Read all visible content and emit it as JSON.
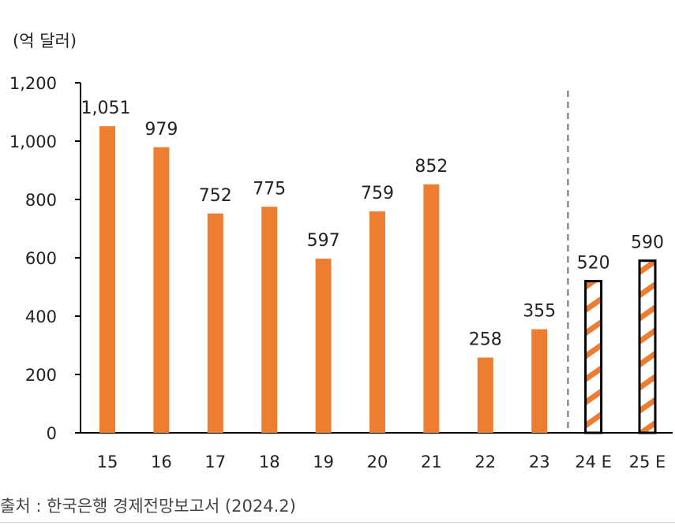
{
  "unit_label": "(억 달러)",
  "source_note": "출처 : 한국은행 경제전망보고서 (2024.2)",
  "chart_data": {
    "type": "bar",
    "categories": [
      "15",
      "16",
      "17",
      "18",
      "19",
      "20",
      "21",
      "22",
      "23",
      "24 E",
      "25 E"
    ],
    "values": [
      1051,
      979,
      752,
      775,
      597,
      759,
      852,
      258,
      355,
      520,
      590
    ],
    "value_labels": [
      "1,051",
      "979",
      "752",
      "775",
      "597",
      "759",
      "852",
      "258",
      "355",
      "520",
      "590"
    ],
    "estimate_flags": [
      false,
      false,
      false,
      false,
      false,
      false,
      false,
      false,
      false,
      true,
      true
    ],
    "ylim": [
      0,
      1200
    ],
    "yticks": [
      0,
      200,
      400,
      600,
      800,
      1000,
      1200
    ],
    "ytick_labels": [
      "0",
      "200",
      "400",
      "600",
      "800",
      "1,000",
      "1,200"
    ],
    "title": "",
    "xlabel": "",
    "ylabel": "",
    "grid": false,
    "divider": "dashed line between actual and estimate bars",
    "colors": {
      "bar": "#ED7D31",
      "estimate_outline": "#000000",
      "axis": "#000000",
      "divider": "#8c8c8c"
    }
  }
}
